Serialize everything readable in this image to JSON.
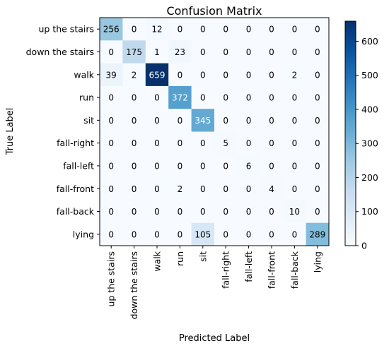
{
  "chart_data": {
    "type": "heatmap",
    "title": "Confusion Matrix",
    "xlabel": "Predicted Label",
    "ylabel": "True Label",
    "x_categories": [
      "up the stairs",
      "down the stairs",
      "walk",
      "run",
      "sit",
      "fall-right",
      "fall-left",
      "fall-front",
      "fall-back",
      "lying"
    ],
    "y_categories": [
      "up the stairs",
      "down the stairs",
      "walk",
      "run",
      "sit",
      "fall-right",
      "fall-left",
      "fall-front",
      "fall-back",
      "lying"
    ],
    "values": [
      [
        256,
        0,
        12,
        0,
        0,
        0,
        0,
        0,
        0,
        0
      ],
      [
        0,
        175,
        1,
        23,
        0,
        0,
        0,
        0,
        0,
        0
      ],
      [
        39,
        2,
        659,
        0,
        0,
        0,
        0,
        0,
        2,
        0
      ],
      [
        0,
        0,
        0,
        372,
        0,
        0,
        0,
        0,
        0,
        0
      ],
      [
        0,
        0,
        0,
        0,
        345,
        0,
        0,
        0,
        0,
        0
      ],
      [
        0,
        0,
        0,
        0,
        0,
        5,
        0,
        0,
        0,
        0
      ],
      [
        0,
        0,
        0,
        0,
        0,
        0,
        6,
        0,
        0,
        0
      ],
      [
        0,
        0,
        0,
        2,
        0,
        0,
        0,
        4,
        0,
        0
      ],
      [
        0,
        0,
        0,
        0,
        0,
        0,
        0,
        0,
        10,
        0
      ],
      [
        0,
        0,
        0,
        0,
        105,
        0,
        0,
        0,
        0,
        289
      ]
    ],
    "colormap": "Blues",
    "color_range": [
      0,
      659
    ],
    "colorbar_ticks": [
      0,
      100,
      200,
      300,
      400,
      500,
      600
    ]
  }
}
